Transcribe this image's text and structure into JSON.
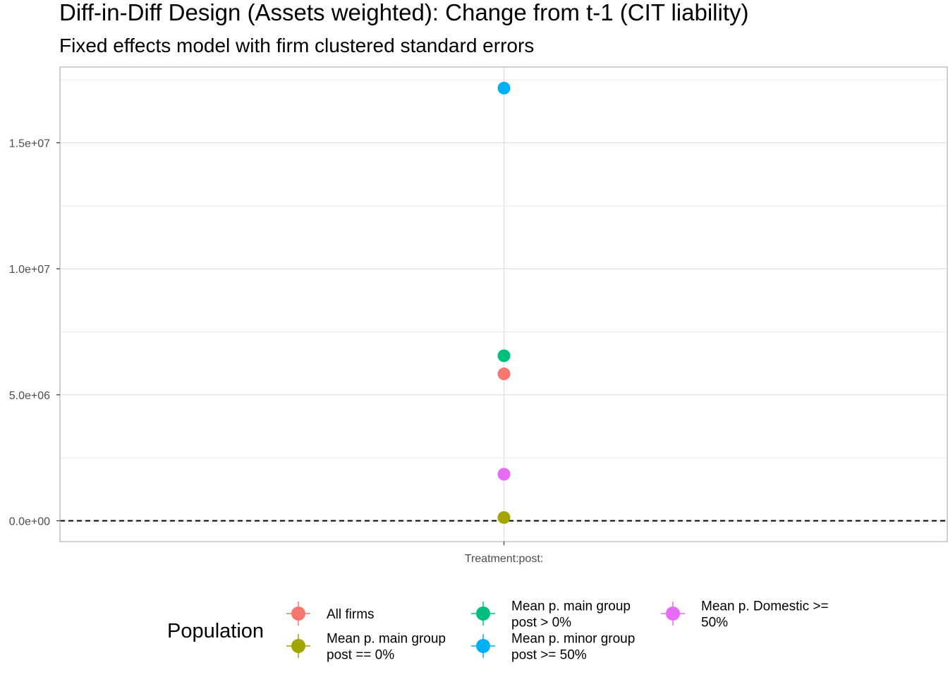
{
  "chart_data": {
    "type": "scatter",
    "title": "Diff-in-Diff Design (Assets weighted): Change from t-1 (CIT liability)",
    "subtitle": "Fixed effects model with firm clustered standard errors",
    "xlabel": "",
    "ylabel": "",
    "categories": [
      "Treatment:post:"
    ],
    "ylim": [
      -800000,
      18000000
    ],
    "y_ticks": [
      0,
      5000000,
      10000000,
      15000000
    ],
    "y_tick_labels": [
      "0.0e+00",
      "5.0e+06",
      "1.0e+07",
      "1.5e+07"
    ],
    "reference_line": {
      "y": 0,
      "style": "dashed"
    },
    "grid": true,
    "legend": {
      "title": "Population",
      "placement": "bottom"
    },
    "series": [
      {
        "name": "All firms",
        "color": "#F8766D",
        "values": [
          5830000
        ]
      },
      {
        "name": "Mean p. main group post == 0%",
        "label_lines": [
          "Mean p. main group",
          "post == 0%"
        ],
        "color": "#A3A500",
        "values": [
          130000
        ]
      },
      {
        "name": "Mean p. main group post > 0%",
        "label_lines": [
          "Mean p. main group",
          "post > 0%"
        ],
        "color": "#00BF7D",
        "values": [
          6550000
        ]
      },
      {
        "name": "Mean p. minor group post >= 50%",
        "label_lines": [
          "Mean p. minor group",
          "post >= 50%"
        ],
        "color": "#00B0F6",
        "values": [
          17170000
        ]
      },
      {
        "name": "Mean p. Domestic >= 50%",
        "label_lines": [
          "Mean p. Domestic >=",
          "50%"
        ],
        "color": "#E76BF3",
        "values": [
          1850000
        ]
      }
    ]
  }
}
